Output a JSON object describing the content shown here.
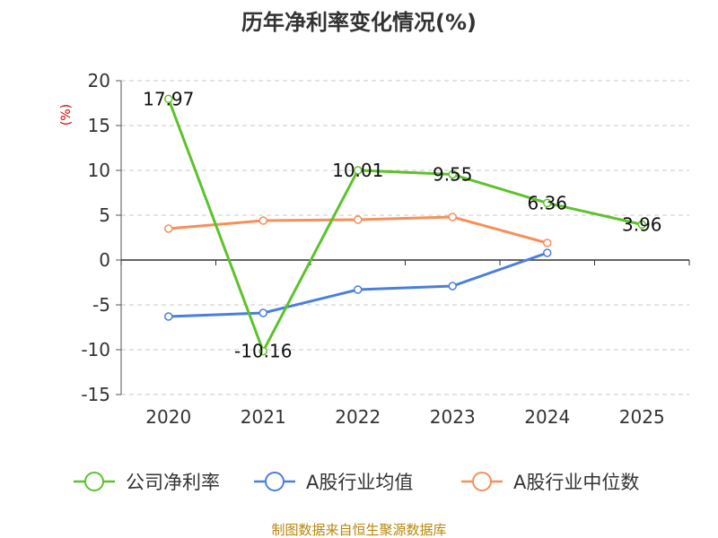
{
  "chart_data": {
    "type": "line",
    "title": "历年净利率变化情况(%)",
    "ylabel": "(%)",
    "xlabel": "",
    "categories": [
      "2020",
      "2021",
      "2022",
      "2023",
      "2024",
      "2025"
    ],
    "ylim": [
      -15,
      20
    ],
    "yticks": [
      -15,
      -10,
      -5,
      0,
      5,
      10,
      15,
      20
    ],
    "grid": true,
    "legend": "bottom",
    "series": [
      {
        "name": "公司净利率",
        "color": "#5dc22c",
        "values": [
          17.97,
          -10.16,
          10.01,
          9.55,
          6.36,
          3.96
        ],
        "labels": [
          "17.97",
          "-10.16",
          "10.01",
          "9.55",
          "6.36",
          "3.96"
        ]
      },
      {
        "name": "A股行业均值",
        "color": "#4a7fdc",
        "values": [
          -6.3,
          -5.9,
          -3.3,
          -2.9,
          0.8,
          null
        ]
      },
      {
        "name": "A股行业中位数",
        "color": "#f5905a",
        "values": [
          3.5,
          4.4,
          4.5,
          4.8,
          1.9,
          null
        ]
      }
    ]
  },
  "source": "制图数据来自恒生聚源数据库"
}
